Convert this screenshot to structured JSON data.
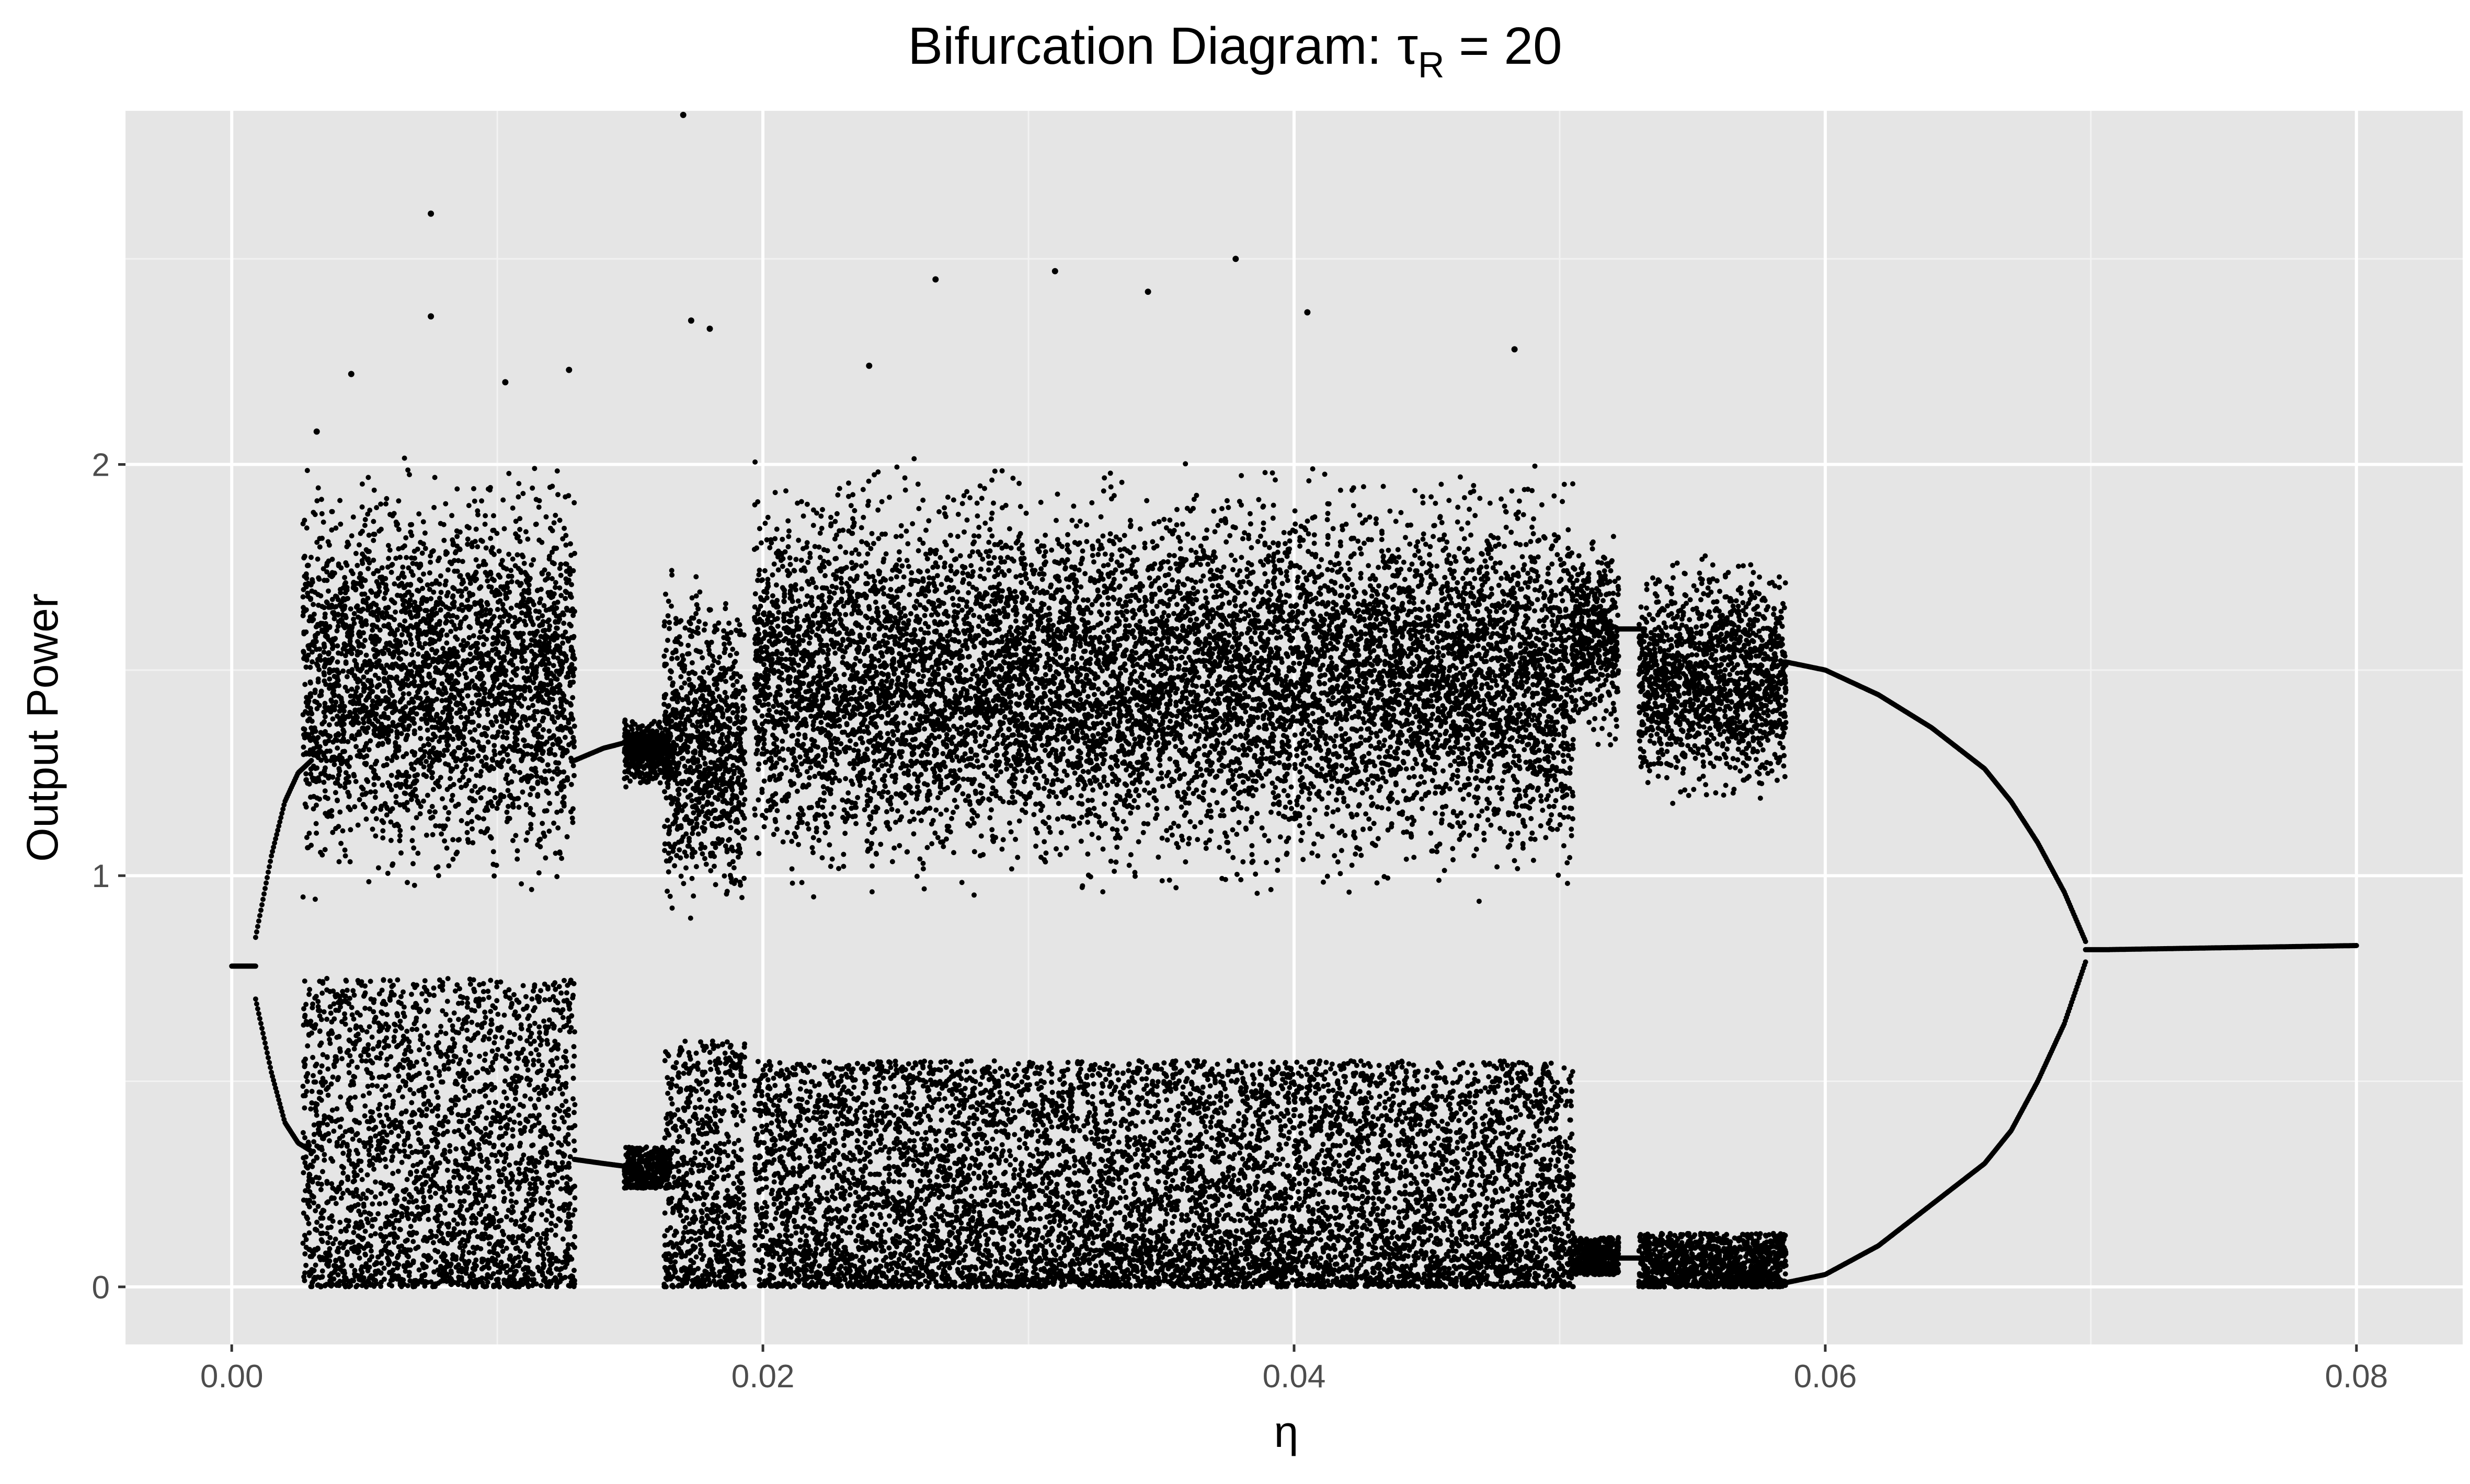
{
  "chart_data": {
    "type": "scatter",
    "title": "Bifurcation Diagram:",
    "title_symbol": "τ",
    "title_subscript": "R",
    "title_suffix": " = 20",
    "xlabel": "η",
    "ylabel": "Output Power",
    "xlim": [
      -0.004,
      0.084
    ],
    "ylim": [
      -0.14,
      2.86
    ],
    "xticks": [
      0.0,
      0.02,
      0.04,
      0.06,
      0.08
    ],
    "xtick_labels": [
      "0.00",
      "0.02",
      "0.04",
      "0.06",
      "0.08"
    ],
    "yticks": [
      0,
      1,
      2
    ],
    "ytick_labels": [
      "0",
      "1",
      "2"
    ],
    "x_minor_ticks": [
      0.01,
      0.03,
      0.05,
      0.07
    ],
    "y_minor_ticks": [
      0.5,
      1.5,
      2.5
    ],
    "grid": true,
    "legend": "none",
    "colors": {
      "panel_background": "#e5e5e5",
      "grid_major": "#ffffff",
      "grid_minor": "#f2f2f2",
      "points": "#000000",
      "tick_text": "#4d4d4d",
      "title_text": "#000000"
    },
    "series": [
      {
        "regime": "fixed point",
        "x": [
          0.0,
          0.0009
        ],
        "y": [
          0.78,
          0.78
        ]
      },
      {
        "regime": "period-2 upper branch",
        "x": [
          0.0009,
          0.0015,
          0.002,
          0.0025,
          0.003
        ],
        "y": [
          0.85,
          1.05,
          1.18,
          1.25,
          1.28
        ]
      },
      {
        "regime": "period-2 lower branch",
        "x": [
          0.0009,
          0.0015,
          0.002,
          0.0025,
          0.003
        ],
        "y": [
          0.7,
          0.52,
          0.4,
          0.35,
          0.33
        ]
      },
      {
        "regime": "chaotic band",
        "x_range": [
          0.0027,
          0.0129
        ],
        "upper_band": [
          0.9,
          2.05
        ],
        "lower_band": [
          0.0,
          0.75
        ],
        "outliers": [
          {
            "x": 0.0075,
            "y": 2.61
          },
          {
            "x": 0.0075,
            "y": 2.36
          },
          {
            "x": 0.0045,
            "y": 2.22
          },
          {
            "x": 0.0103,
            "y": 2.2
          },
          {
            "x": 0.0127,
            "y": 2.23
          },
          {
            "x": 0.0032,
            "y": 2.08
          }
        ]
      },
      {
        "regime": "period-2 upper branch",
        "x": [
          0.0129,
          0.014,
          0.0152
        ],
        "y": [
          1.28,
          1.31,
          1.33
        ]
      },
      {
        "regime": "period-2 lower branch",
        "x": [
          0.0129,
          0.014,
          0.0152
        ],
        "y": [
          0.31,
          0.3,
          0.29
        ]
      },
      {
        "regime": "period-4 island",
        "x_range": [
          0.0148,
          0.0165
        ],
        "upper_band": [
          1.2,
          1.4
        ],
        "lower_band": [
          0.24,
          0.34
        ]
      },
      {
        "regime": "chaotic band",
        "x_range": [
          0.0163,
          0.0193
        ],
        "upper_band": [
          0.85,
          1.8
        ],
        "lower_band": [
          0.0,
          0.6
        ],
        "outliers": [
          {
            "x": 0.017,
            "y": 2.85
          },
          {
            "x": 0.0173,
            "y": 2.35
          },
          {
            "x": 0.018,
            "y": 2.33
          }
        ]
      },
      {
        "regime": "chaotic band",
        "x_range": [
          0.0197,
          0.0505
        ],
        "upper_band": [
          0.9,
          2.05
        ],
        "lower_band": [
          0.0,
          0.55
        ],
        "outliers": [
          {
            "x": 0.0265,
            "y": 2.45
          },
          {
            "x": 0.031,
            "y": 2.47
          },
          {
            "x": 0.0378,
            "y": 2.5
          },
          {
            "x": 0.0345,
            "y": 2.42
          },
          {
            "x": 0.0405,
            "y": 2.37
          },
          {
            "x": 0.0483,
            "y": 2.28
          },
          {
            "x": 0.024,
            "y": 2.24
          }
        ]
      },
      {
        "regime": "narrow chaotic band",
        "x_range": [
          0.0505,
          0.0522
        ],
        "upper_band": [
          1.3,
          1.85
        ],
        "lower_band": [
          0.03,
          0.12
        ]
      },
      {
        "regime": "period-2 upper branch",
        "x": [
          0.0522,
          0.0532
        ],
        "y": [
          1.6,
          1.6
        ]
      },
      {
        "regime": "period-2 lower branch",
        "x": [
          0.0522,
          0.0532
        ],
        "y": [
          0.07,
          0.07
        ]
      },
      {
        "regime": "chaotic island",
        "x_range": [
          0.053,
          0.0585
        ],
        "upper_band": [
          1.12,
          1.82
        ],
        "lower_band": [
          0.0,
          0.13
        ]
      },
      {
        "regime": "period-2 upper branch",
        "x": [
          0.0585,
          0.06,
          0.062,
          0.064,
          0.066,
          0.067,
          0.068,
          0.069,
          0.0698
        ],
        "y": [
          1.52,
          1.5,
          1.44,
          1.36,
          1.26,
          1.18,
          1.08,
          0.96,
          0.84
        ]
      },
      {
        "regime": "period-2 lower branch",
        "x": [
          0.0585,
          0.06,
          0.062,
          0.064,
          0.066,
          0.067,
          0.068,
          0.069,
          0.0698
        ],
        "y": [
          0.01,
          0.03,
          0.1,
          0.2,
          0.3,
          0.38,
          0.5,
          0.64,
          0.79
        ]
      },
      {
        "regime": "fixed point",
        "x": [
          0.0698,
          0.0705,
          0.08
        ],
        "y": [
          0.82,
          0.82,
          0.83
        ]
      }
    ]
  }
}
